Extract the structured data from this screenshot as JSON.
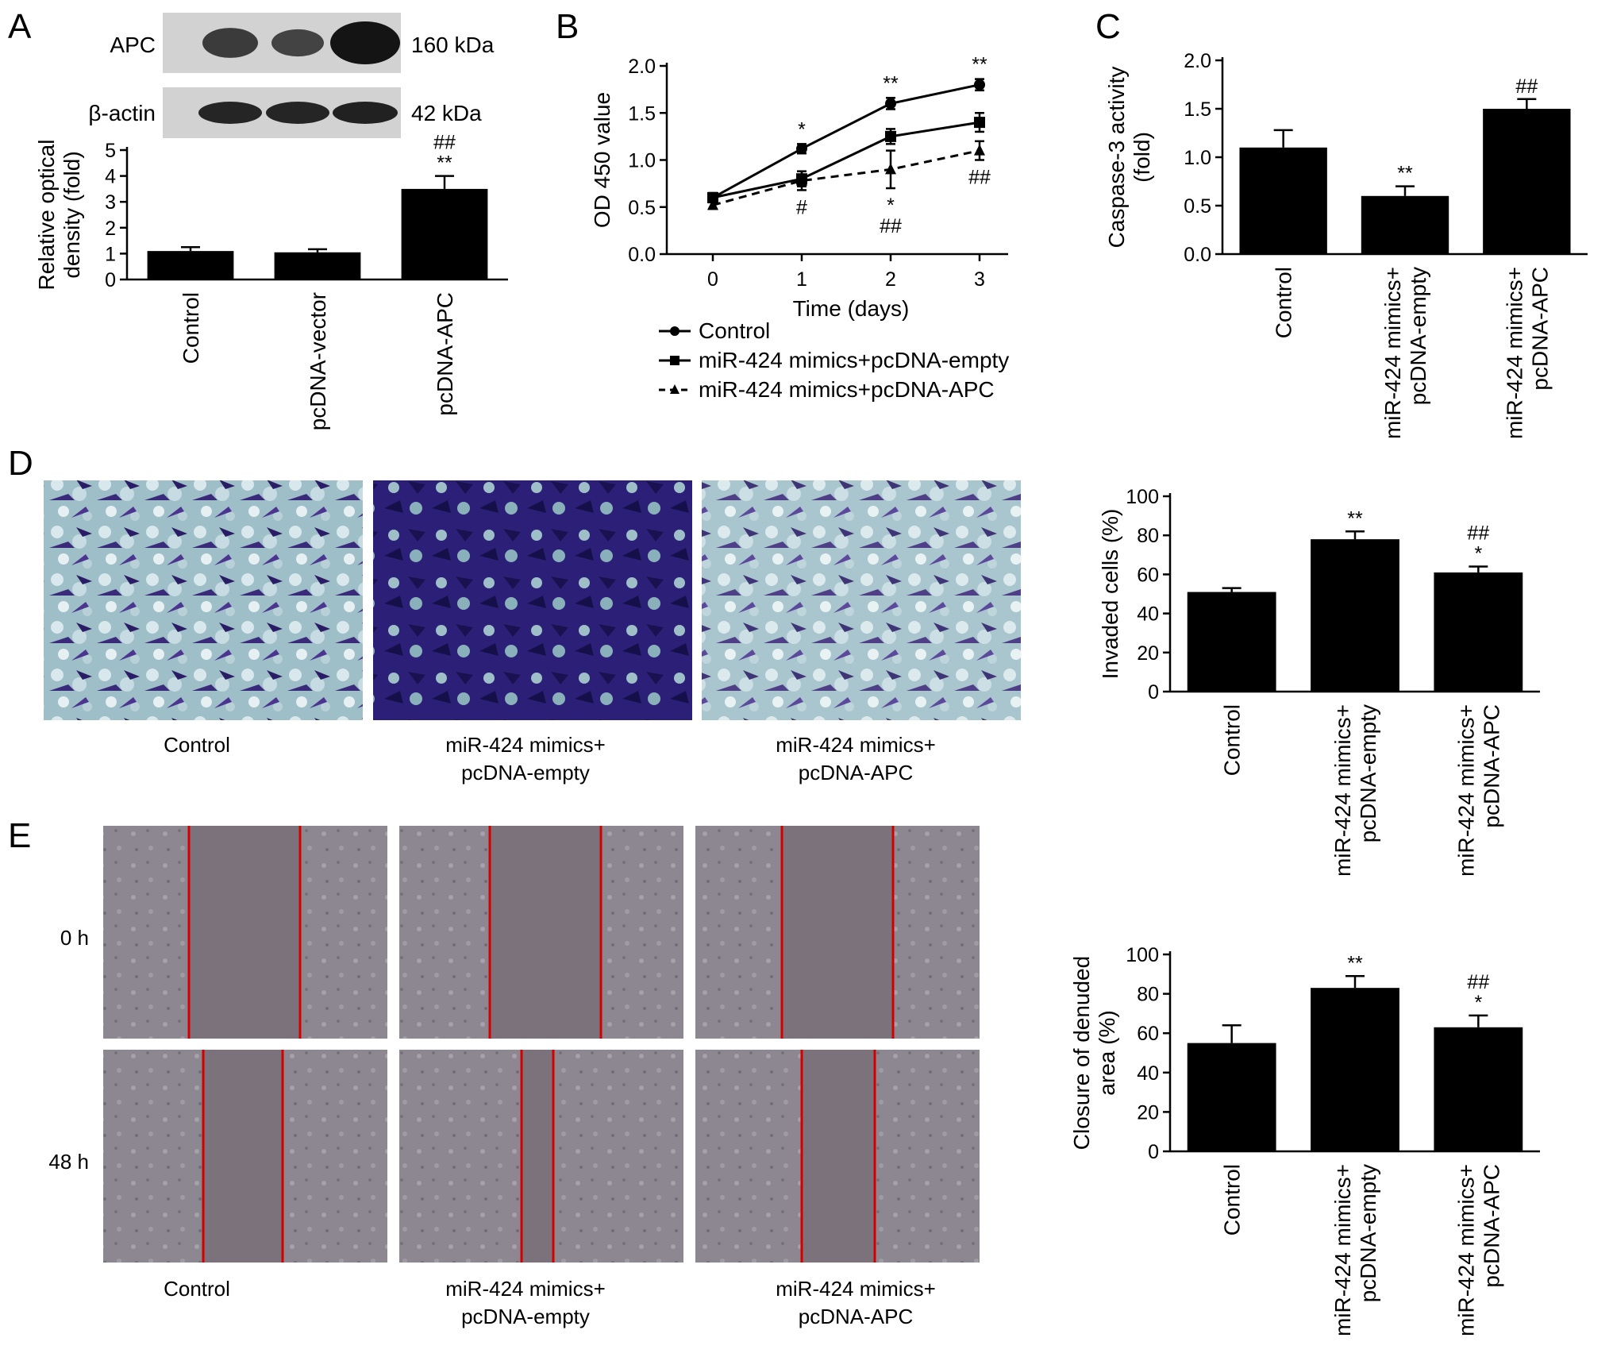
{
  "panel_letters": [
    "A",
    "B",
    "C",
    "D",
    "E"
  ],
  "panelA": {
    "blot_rows": [
      {
        "protein": "APC",
        "size": "160 kDa",
        "band_intensity": [
          0.55,
          0.45,
          1.0
        ]
      },
      {
        "protein": "β-actin",
        "size": "42 kDa",
        "band_intensity": [
          0.8,
          0.8,
          0.85
        ]
      }
    ]
  },
  "panelD": {
    "image_captions": [
      {
        "line1": "Control",
        "line2": ""
      },
      {
        "line1": "miR-424 mimics+",
        "line2": "pcDNA-empty"
      },
      {
        "line1": "miR-424 mimics+",
        "line2": "pcDNA-APC"
      }
    ]
  },
  "panelE": {
    "row_labels": [
      "0 h",
      "48 h"
    ],
    "image_captions": [
      {
        "line1": "Control",
        "line2": ""
      },
      {
        "line1": "miR-424 mimics+",
        "line2": "pcDNA-empty"
      },
      {
        "line1": "miR-424 mimics+",
        "line2": "pcDNA-APC"
      }
    ],
    "scratch_line_color": "#d40000"
  },
  "chart_data": [
    {
      "id": "A",
      "type": "bar",
      "ylabel_lines": [
        "Relative optical",
        "density (fold)"
      ],
      "categories": [
        "Control",
        "pcDNA-vector",
        "pcDNA-APC"
      ],
      "values": [
        1.1,
        1.05,
        3.5
      ],
      "errors": [
        0.15,
        0.12,
        0.5
      ],
      "annotations": [
        [],
        [],
        [
          "##",
          "**"
        ]
      ],
      "ylim": [
        0,
        5
      ],
      "yticks": [
        0,
        1,
        2,
        3,
        4,
        5
      ]
    },
    {
      "id": "B",
      "type": "line",
      "xlabel": "Time (days)",
      "ylabel": "OD 450 value",
      "x": [
        0,
        1,
        2,
        3
      ],
      "xticks": [
        0,
        1,
        2,
        3
      ],
      "ylim": [
        0,
        2.0
      ],
      "yticks": [
        "0.0",
        "0.5",
        "1.0",
        "1.5",
        "2.0"
      ],
      "series": [
        {
          "name": "Control",
          "values": [
            0.6,
            1.12,
            1.6,
            1.8
          ],
          "errors": [
            0.04,
            0.05,
            0.06,
            0.06
          ],
          "marker": "circle",
          "dash": false,
          "annotations": [
            {
              "x": 1,
              "text": "*",
              "pos": "above"
            },
            {
              "x": 2,
              "text": "**",
              "pos": "above"
            },
            {
              "x": 3,
              "text": "**",
              "pos": "above"
            }
          ]
        },
        {
          "name": "miR-424 mimics+pcDNA-empty",
          "values": [
            0.6,
            0.8,
            1.25,
            1.4
          ],
          "errors": [
            0.05,
            0.08,
            0.08,
            0.1
          ],
          "marker": "square",
          "dash": false,
          "annotations": []
        },
        {
          "name": "miR-424 mimics+pcDNA-APC",
          "values": [
            0.52,
            0.78,
            0.9,
            1.1
          ],
          "errors": [
            0.04,
            0.1,
            0.2,
            0.1
          ],
          "marker": "triangle",
          "dash": true,
          "annotations": [
            {
              "x": 1,
              "text": "#",
              "pos": "below"
            },
            {
              "x": 2,
              "text": "*",
              "pos": "below"
            },
            {
              "x": 2,
              "text": "##",
              "pos": "below2"
            },
            {
              "x": 3,
              "text": "##",
              "pos": "below"
            }
          ]
        }
      ]
    },
    {
      "id": "C",
      "type": "bar",
      "ylabel_lines": [
        "Caspase-3 activity",
        "(fold)"
      ],
      "categories": [
        "Control",
        "miR-424 mimics+\npcDNA-empty",
        "miR-424 mimics+\npcDNA-APC"
      ],
      "values": [
        1.1,
        0.6,
        1.5
      ],
      "errors": [
        0.18,
        0.1,
        0.1
      ],
      "annotations": [
        [],
        [
          "**"
        ],
        [
          "##"
        ]
      ],
      "ylim": [
        0,
        2.0
      ],
      "yticks": [
        "0.0",
        "0.5",
        "1.0",
        "1.5",
        "2.0"
      ]
    },
    {
      "id": "D",
      "type": "bar",
      "ylabel_lines": [
        "Invaded cells (%)"
      ],
      "categories": [
        "Control",
        "miR-424 mimics+\npcDNA-empty",
        "miR-424 mimics+\npcDNA-APC"
      ],
      "values": [
        51,
        78,
        61
      ],
      "errors": [
        2,
        4,
        3
      ],
      "annotations": [
        [],
        [
          "**"
        ],
        [
          "##",
          "*"
        ]
      ],
      "ylim": [
        0,
        100
      ],
      "yticks": [
        0,
        20,
        40,
        60,
        80,
        100
      ]
    },
    {
      "id": "E",
      "type": "bar",
      "ylabel_lines": [
        "Closure of denuded",
        "area (%)"
      ],
      "categories": [
        "Control",
        "miR-424 mimics+\npcDNA-empty",
        "miR-424 mimics+\npcDNA-APC"
      ],
      "values": [
        55,
        83,
        63
      ],
      "errors": [
        9,
        6,
        6
      ],
      "annotations": [
        [],
        [
          "**"
        ],
        [
          "##",
          "*"
        ]
      ],
      "ylim": [
        0,
        100
      ],
      "yticks": [
        0,
        20,
        40,
        60,
        80,
        100
      ]
    }
  ]
}
